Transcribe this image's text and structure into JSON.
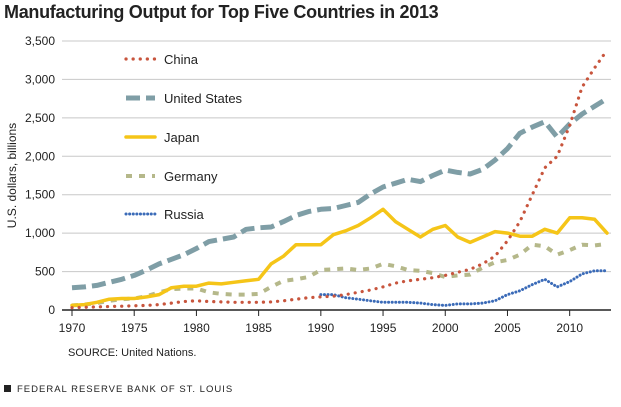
{
  "chart_data": {
    "type": "line",
    "title": "Manufacturing Output for Top Five Countries in 2013",
    "xlabel": "",
    "ylabel": "U.S. dollars, billions",
    "xlim": [
      1970,
      2013
    ],
    "ylim": [
      0,
      3500
    ],
    "x_ticks": [
      1970,
      1975,
      1980,
      1985,
      1990,
      1995,
      2000,
      2005,
      2010
    ],
    "y_ticks": [
      "0",
      "500",
      "1,000",
      "1,500",
      "2,000",
      "2,500",
      "3,000",
      "3,500"
    ],
    "y_tick_values": [
      0,
      500,
      1000,
      1500,
      2000,
      2500,
      3000,
      3500
    ],
    "grid": true,
    "legend_position": "top-left",
    "x": [
      1970,
      1971,
      1972,
      1973,
      1974,
      1975,
      1976,
      1977,
      1978,
      1979,
      1980,
      1981,
      1982,
      1983,
      1984,
      1985,
      1986,
      1987,
      1988,
      1989,
      1990,
      1991,
      1992,
      1993,
      1994,
      1995,
      1996,
      1997,
      1998,
      1999,
      2000,
      2001,
      2002,
      2003,
      2004,
      2005,
      2006,
      2007,
      2008,
      2009,
      2010,
      2011,
      2012,
      2013
    ],
    "series": [
      {
        "name": "China",
        "color": "#c8553d",
        "style": "dotted",
        "values": [
          30,
          35,
          40,
          45,
          50,
          55,
          60,
          70,
          90,
          110,
          120,
          110,
          105,
          100,
          100,
          100,
          105,
          120,
          140,
          160,
          170,
          180,
          200,
          230,
          260,
          300,
          350,
          380,
          400,
          420,
          450,
          490,
          530,
          600,
          700,
          900,
          1150,
          1500,
          1850,
          2000,
          2400,
          2900,
          3150,
          3380
        ]
      },
      {
        "name": "United States",
        "color": "#7f9ea6",
        "style": "longdash",
        "values": [
          290,
          300,
          320,
          360,
          400,
          450,
          520,
          600,
          660,
          720,
          800,
          890,
          920,
          950,
          1050,
          1070,
          1080,
          1150,
          1230,
          1280,
          1310,
          1320,
          1360,
          1400,
          1510,
          1600,
          1650,
          1700,
          1670,
          1750,
          1820,
          1790,
          1770,
          1830,
          1950,
          2100,
          2300,
          2380,
          2450,
          2250,
          2420,
          2550,
          2650,
          2750
        ]
      },
      {
        "name": "Japan",
        "color": "#f5c518",
        "style": "solid",
        "values": [
          60,
          70,
          100,
          140,
          150,
          150,
          170,
          200,
          290,
          310,
          310,
          350,
          340,
          360,
          380,
          400,
          600,
          700,
          850,
          850,
          850,
          980,
          1030,
          1100,
          1200,
          1310,
          1150,
          1050,
          950,
          1050,
          1100,
          950,
          880,
          950,
          1020,
          1000,
          960,
          960,
          1050,
          1000,
          1200,
          1200,
          1180,
          1000
        ]
      },
      {
        "name": "Germany",
        "color": "#b5b88a",
        "style": "dashed",
        "values": [
          60,
          70,
          90,
          120,
          140,
          150,
          180,
          230,
          270,
          280,
          280,
          230,
          210,
          200,
          200,
          210,
          300,
          380,
          400,
          430,
          520,
          530,
          540,
          520,
          540,
          600,
          570,
          520,
          510,
          480,
          430,
          450,
          460,
          550,
          620,
          650,
          720,
          850,
          830,
          720,
          780,
          850,
          840,
          860
        ]
      },
      {
        "name": "Russia",
        "color": "#3b6bb8",
        "style": "finedotted",
        "values": [
          null,
          null,
          null,
          null,
          null,
          null,
          null,
          null,
          null,
          null,
          null,
          null,
          null,
          null,
          null,
          null,
          null,
          null,
          null,
          null,
          200,
          200,
          160,
          140,
          120,
          100,
          100,
          100,
          90,
          70,
          60,
          80,
          80,
          90,
          120,
          200,
          250,
          330,
          400,
          300,
          370,
          470,
          510,
          510
        ]
      }
    ]
  },
  "source": "SOURCE: United Nations.",
  "footer": "FEDERAL RESERVE BANK OF ST. LOUIS"
}
